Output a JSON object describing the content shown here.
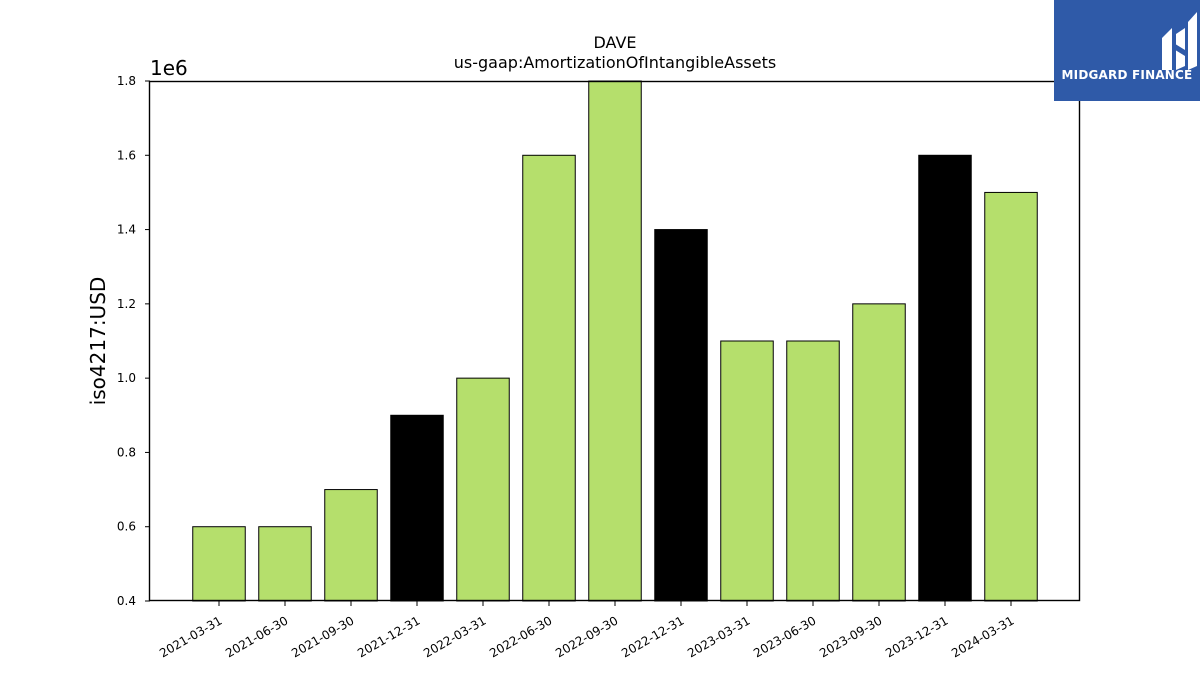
{
  "chart_data": {
    "type": "bar",
    "title": "DAVE",
    "subtitle": "us-gaap:AmortizationOfIntangibleAssets",
    "ylabel": "iso4217:USD",
    "xlabel": "",
    "offset_label": "1e6",
    "ylim": [
      400000,
      1800000
    ],
    "yticks": [
      "0.4",
      "0.6",
      "0.8",
      "1.0",
      "1.2",
      "1.4",
      "1.6",
      "1.8"
    ],
    "ytick_values": [
      400000,
      600000,
      800000,
      1000000,
      1200000,
      1400000,
      1600000,
      1800000
    ],
    "grid": false,
    "categories": [
      "2021-03-31",
      "2021-06-30",
      "2021-09-30",
      "2021-12-31",
      "2022-03-31",
      "2022-06-30",
      "2022-09-30",
      "2022-12-31",
      "2023-03-31",
      "2023-06-30",
      "2023-09-30",
      "2023-12-31",
      "2024-03-31"
    ],
    "values": [
      600000,
      600000,
      700000,
      900000,
      1000000,
      1600000,
      1800000,
      1400000,
      1100000,
      1100000,
      1200000,
      1600000,
      1500000
    ],
    "bar_colors": [
      "#b5df6c",
      "#b5df6c",
      "#b5df6c",
      "#000000",
      "#b5df6c",
      "#b5df6c",
      "#b5df6c",
      "#000000",
      "#b5df6c",
      "#b5df6c",
      "#b5df6c",
      "#000000",
      "#b5df6c"
    ]
  },
  "logo": {
    "text": "MIDGARD FINANCE",
    "background": "#2f5aa8",
    "icon": "midgard-mark-icon"
  }
}
